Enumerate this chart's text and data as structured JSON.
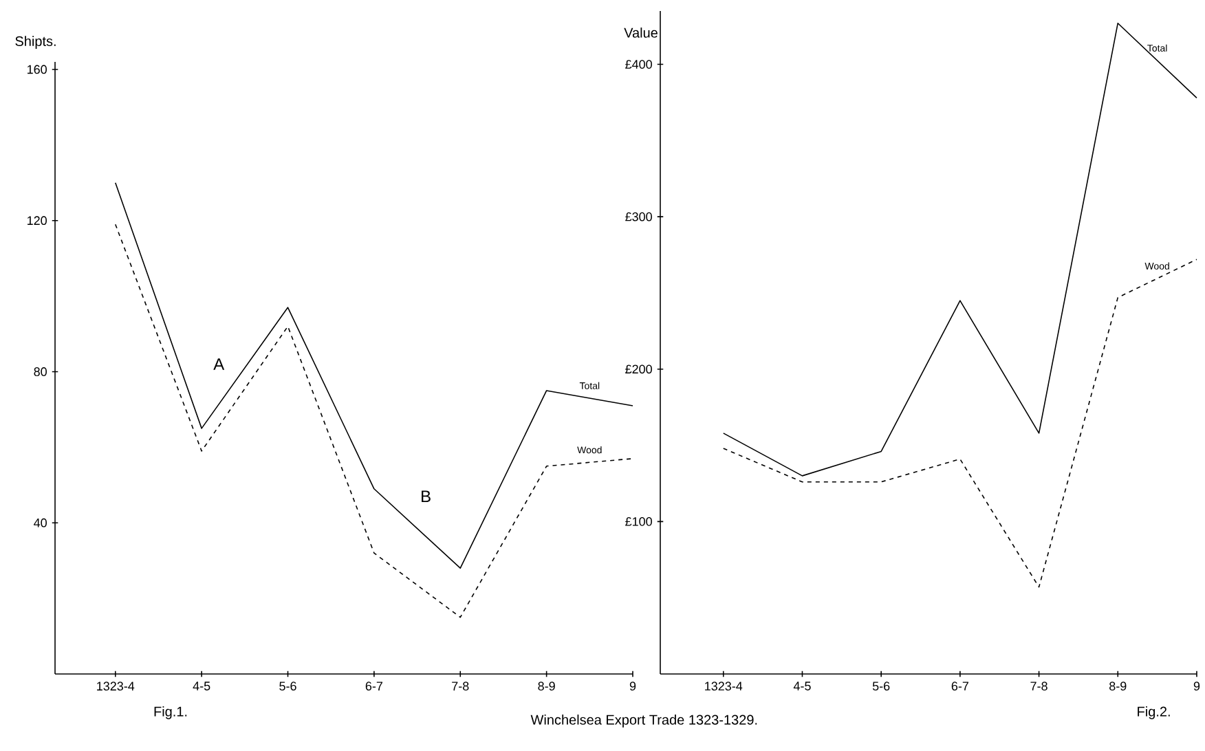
{
  "chart_data": [
    {
      "type": "line",
      "title": "Fig.1.",
      "ylabel": "Shipts.",
      "categories": [
        "1323-4",
        "4-5",
        "5-6",
        "6-7",
        "7-8",
        "8-9",
        "9"
      ],
      "series": [
        {
          "name": "Total",
          "color": "#000000",
          "line_style": "solid",
          "values": [
            130,
            65,
            97,
            49,
            28,
            75,
            71
          ]
        },
        {
          "name": "Wood",
          "color": "#000000",
          "line_style": "dashed",
          "values": [
            119,
            59,
            92,
            32,
            15,
            55,
            57
          ]
        }
      ],
      "ylim": [
        0,
        162
      ],
      "yticks": [
        40,
        80,
        120,
        160
      ],
      "annotations": [
        "A",
        "B",
        "Winchelsea Export Trade 1323-1329."
      ]
    },
    {
      "type": "line",
      "title": "Fig.2.",
      "ylabel": "Value",
      "categories": [
        "1323-4",
        "4-5",
        "5-6",
        "6-7",
        "7-8",
        "8-9",
        "9"
      ],
      "series": [
        {
          "name": "Total",
          "color": "#000000",
          "line_style": "solid",
          "values": [
            158,
            130,
            146,
            245,
            158,
            427,
            378
          ]
        },
        {
          "name": "Wood",
          "color": "#000000",
          "line_style": "dashed",
          "values": [
            148,
            126,
            126,
            141,
            57,
            247,
            272
          ]
        }
      ],
      "ylim": [
        0,
        435
      ],
      "yticks": [
        {
          "value": 100,
          "label": "£100"
        },
        {
          "value": 200,
          "label": "£200"
        },
        {
          "value": 300,
          "label": "£300"
        },
        {
          "value": 400,
          "label": "£400"
        }
      ]
    }
  ]
}
